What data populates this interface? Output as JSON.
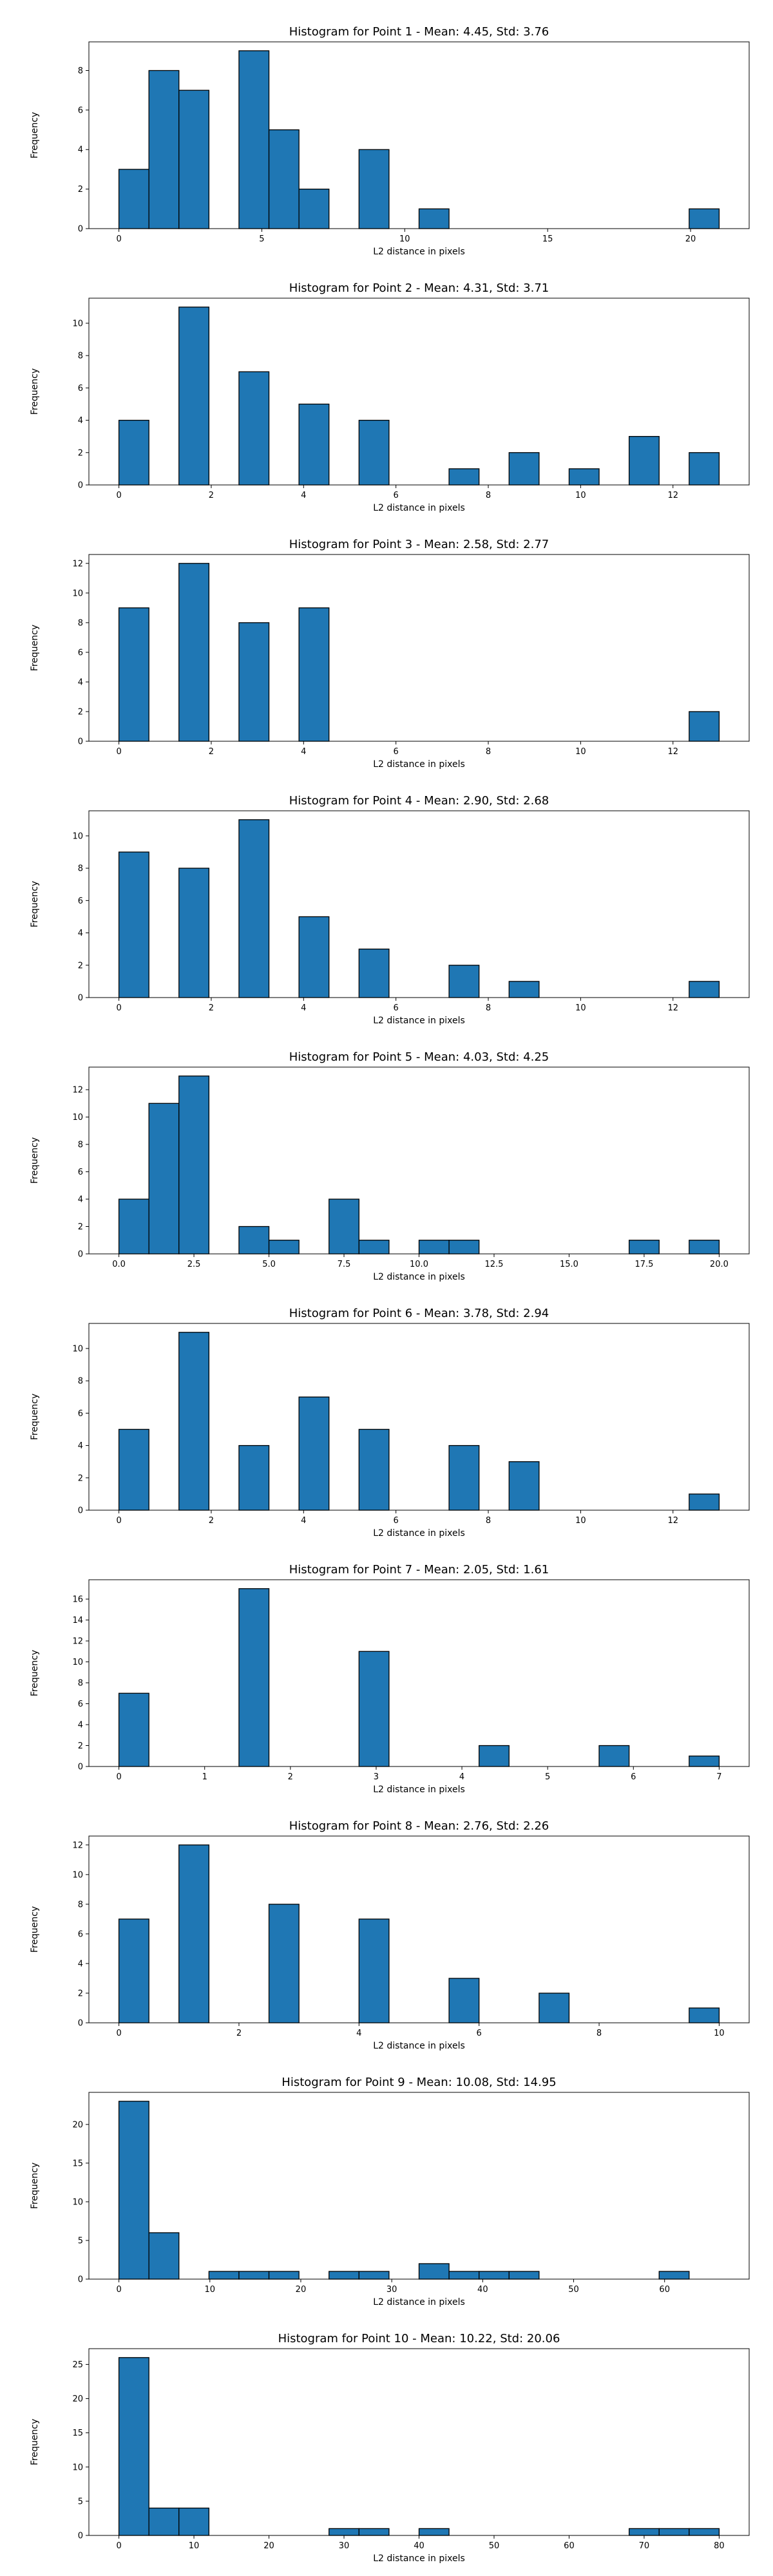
{
  "chart_data": [
    {
      "type": "bar",
      "title": "Histogram for Point 1 - Mean: 4.45, Std: 3.76",
      "xlabel": "L2 distance in pixels",
      "ylabel": "Frequency",
      "xlim": [
        -1.05,
        22.05
      ],
      "ylim": [
        0,
        9.45
      ],
      "xticks": [
        0,
        5,
        10,
        15,
        20
      ],
      "xtick_labels": [
        "0",
        "5",
        "10",
        "15",
        "20"
      ],
      "yticks": [
        0,
        2,
        4,
        6,
        8
      ],
      "bin_width": 1.05,
      "bars": [
        {
          "x": 0.0,
          "value": 3
        },
        {
          "x": 1.05,
          "value": 8
        },
        {
          "x": 2.1,
          "value": 7
        },
        {
          "x": 4.2,
          "value": 9
        },
        {
          "x": 5.25,
          "value": 5
        },
        {
          "x": 6.3,
          "value": 2
        },
        {
          "x": 8.4,
          "value": 4
        },
        {
          "x": 10.5,
          "value": 1
        },
        {
          "x": 19.95,
          "value": 1
        }
      ]
    },
    {
      "type": "bar",
      "title": "Histogram for Point 2 - Mean: 4.31, Std: 3.71",
      "xlabel": "L2 distance in pixels",
      "ylabel": "Frequency",
      "xlim": [
        -0.65,
        13.65
      ],
      "ylim": [
        0,
        11.55
      ],
      "xticks": [
        0,
        2,
        4,
        6,
        8,
        10,
        12
      ],
      "xtick_labels": [
        "0",
        "2",
        "4",
        "6",
        "8",
        "10",
        "12"
      ],
      "yticks": [
        0,
        2,
        4,
        6,
        8,
        10
      ],
      "bin_width": 0.65,
      "bars": [
        {
          "x": 0.0,
          "value": 4
        },
        {
          "x": 1.3,
          "value": 11
        },
        {
          "x": 2.6,
          "value": 7
        },
        {
          "x": 3.9,
          "value": 5
        },
        {
          "x": 5.2,
          "value": 4
        },
        {
          "x": 7.15,
          "value": 1
        },
        {
          "x": 8.45,
          "value": 2
        },
        {
          "x": 9.75,
          "value": 1
        },
        {
          "x": 11.05,
          "value": 3
        },
        {
          "x": 12.35,
          "value": 2
        }
      ]
    },
    {
      "type": "bar",
      "title": "Histogram for Point 3 - Mean: 2.58, Std: 2.77",
      "xlabel": "L2 distance in pixels",
      "ylabel": "Frequency",
      "xlim": [
        -0.65,
        13.65
      ],
      "ylim": [
        0,
        12.6
      ],
      "xticks": [
        0,
        2,
        4,
        6,
        8,
        10,
        12
      ],
      "xtick_labels": [
        "0",
        "2",
        "4",
        "6",
        "8",
        "10",
        "12"
      ],
      "yticks": [
        0,
        2,
        4,
        6,
        8,
        10,
        12
      ],
      "bin_width": 0.65,
      "bars": [
        {
          "x": 0.0,
          "value": 9
        },
        {
          "x": 1.3,
          "value": 12
        },
        {
          "x": 2.6,
          "value": 8
        },
        {
          "x": 3.9,
          "value": 9
        },
        {
          "x": 12.35,
          "value": 2
        }
      ]
    },
    {
      "type": "bar",
      "title": "Histogram for Point 4 - Mean: 2.90, Std: 2.68",
      "xlabel": "L2 distance in pixels",
      "ylabel": "Frequency",
      "xlim": [
        -0.65,
        13.65
      ],
      "ylim": [
        0,
        11.55
      ],
      "xticks": [
        0,
        2,
        4,
        6,
        8,
        10,
        12
      ],
      "xtick_labels": [
        "0",
        "2",
        "4",
        "6",
        "8",
        "10",
        "12"
      ],
      "yticks": [
        0,
        2,
        4,
        6,
        8,
        10
      ],
      "bin_width": 0.65,
      "bars": [
        {
          "x": 0.0,
          "value": 9
        },
        {
          "x": 1.3,
          "value": 8
        },
        {
          "x": 2.6,
          "value": 11
        },
        {
          "x": 3.9,
          "value": 5
        },
        {
          "x": 5.2,
          "value": 3
        },
        {
          "x": 7.15,
          "value": 2
        },
        {
          "x": 8.45,
          "value": 1
        },
        {
          "x": 12.35,
          "value": 1
        }
      ]
    },
    {
      "type": "bar",
      "title": "Histogram for Point 5 - Mean: 4.03, Std: 4.25",
      "xlabel": "L2 distance in pixels",
      "ylabel": "Frequency",
      "xlim": [
        -1.0,
        21.0
      ],
      "ylim": [
        0,
        13.65
      ],
      "xticks": [
        0,
        2.5,
        5,
        7.5,
        10,
        12.5,
        15,
        17.5,
        20
      ],
      "xtick_labels": [
        "0.0",
        "2.5",
        "5.0",
        "7.5",
        "10.0",
        "12.5",
        "15.0",
        "17.5",
        "20.0"
      ],
      "yticks": [
        0,
        2,
        4,
        6,
        8,
        10,
        12
      ],
      "bin_width": 1.0,
      "bars": [
        {
          "x": 0.0,
          "value": 4
        },
        {
          "x": 1.0,
          "value": 11
        },
        {
          "x": 2.0,
          "value": 13
        },
        {
          "x": 4.0,
          "value": 2
        },
        {
          "x": 5.0,
          "value": 1
        },
        {
          "x": 7.0,
          "value": 4
        },
        {
          "x": 8.0,
          "value": 1
        },
        {
          "x": 10.0,
          "value": 1
        },
        {
          "x": 11.0,
          "value": 1
        },
        {
          "x": 17.0,
          "value": 1
        },
        {
          "x": 19.0,
          "value": 1
        }
      ]
    },
    {
      "type": "bar",
      "title": "Histogram for Point 6 - Mean: 3.78, Std: 2.94",
      "xlabel": "L2 distance in pixels",
      "ylabel": "Frequency",
      "xlim": [
        -0.65,
        13.65
      ],
      "ylim": [
        0,
        11.55
      ],
      "xticks": [
        0,
        2,
        4,
        6,
        8,
        10,
        12
      ],
      "xtick_labels": [
        "0",
        "2",
        "4",
        "6",
        "8",
        "10",
        "12"
      ],
      "yticks": [
        0,
        2,
        4,
        6,
        8,
        10
      ],
      "bin_width": 0.65,
      "bars": [
        {
          "x": 0.0,
          "value": 5
        },
        {
          "x": 1.3,
          "value": 11
        },
        {
          "x": 2.6,
          "value": 4
        },
        {
          "x": 3.9,
          "value": 7
        },
        {
          "x": 5.2,
          "value": 5
        },
        {
          "x": 7.15,
          "value": 4
        },
        {
          "x": 8.45,
          "value": 3
        },
        {
          "x": 12.35,
          "value": 1
        }
      ]
    },
    {
      "type": "bar",
      "title": "Histogram for Point 7 - Mean: 2.05, Std: 1.61",
      "xlabel": "L2 distance in pixels",
      "ylabel": "Frequency",
      "xlim": [
        -0.35,
        7.35
      ],
      "ylim": [
        0,
        17.85
      ],
      "xticks": [
        0,
        1,
        2,
        3,
        4,
        5,
        6,
        7
      ],
      "xtick_labels": [
        "0",
        "1",
        "2",
        "3",
        "4",
        "5",
        "6",
        "7"
      ],
      "yticks": [
        0,
        2,
        4,
        6,
        8,
        10,
        12,
        14,
        16
      ],
      "bin_width": 0.35,
      "bars": [
        {
          "x": 0.0,
          "value": 7
        },
        {
          "x": 1.4,
          "value": 17
        },
        {
          "x": 2.8,
          "value": 11
        },
        {
          "x": 4.2,
          "value": 2
        },
        {
          "x": 5.6,
          "value": 2
        },
        {
          "x": 6.65,
          "value": 1
        }
      ]
    },
    {
      "type": "bar",
      "title": "Histogram for Point 8 - Mean: 2.76, Std: 2.26",
      "xlabel": "L2 distance in pixels",
      "ylabel": "Frequency",
      "xlim": [
        -0.5,
        10.5
      ],
      "ylim": [
        0,
        12.6
      ],
      "xticks": [
        0,
        2,
        4,
        6,
        8,
        10
      ],
      "xtick_labels": [
        "0",
        "2",
        "4",
        "6",
        "8",
        "10"
      ],
      "yticks": [
        0,
        2,
        4,
        6,
        8,
        10,
        12
      ],
      "bin_width": 0.5,
      "bars": [
        {
          "x": 0.0,
          "value": 7
        },
        {
          "x": 1.0,
          "value": 12
        },
        {
          "x": 2.5,
          "value": 8
        },
        {
          "x": 4.0,
          "value": 7
        },
        {
          "x": 5.5,
          "value": 3
        },
        {
          "x": 7.0,
          "value": 2
        },
        {
          "x": 9.5,
          "value": 1
        }
      ]
    },
    {
      "type": "bar",
      "title": "Histogram for Point 9 - Mean: 10.08, Std: 14.95",
      "xlabel": "L2 distance in pixels",
      "ylabel": "Frequency",
      "xlim": [
        -3.3,
        69.3
      ],
      "ylim": [
        0,
        24.15
      ],
      "xticks": [
        0,
        10,
        20,
        30,
        40,
        50,
        60
      ],
      "xtick_labels": [
        "0",
        "10",
        "20",
        "30",
        "40",
        "50",
        "60"
      ],
      "yticks": [
        0,
        5,
        10,
        15,
        20
      ],
      "bin_width": 3.3,
      "bars": [
        {
          "x": 0.0,
          "value": 23
        },
        {
          "x": 3.3,
          "value": 6
        },
        {
          "x": 9.9,
          "value": 1
        },
        {
          "x": 13.2,
          "value": 1
        },
        {
          "x": 16.5,
          "value": 1
        },
        {
          "x": 23.1,
          "value": 1
        },
        {
          "x": 26.4,
          "value": 1
        },
        {
          "x": 33.0,
          "value": 2
        },
        {
          "x": 36.3,
          "value": 1
        },
        {
          "x": 39.6,
          "value": 1
        },
        {
          "x": 42.9,
          "value": 1
        },
        {
          "x": 59.4,
          "value": 1
        }
      ]
    },
    {
      "type": "bar",
      "title": "Histogram for Point 10 - Mean: 10.22, Std: 20.06",
      "xlabel": "L2 distance in pixels",
      "ylabel": "Frequency",
      "xlim": [
        -4.0,
        84.0
      ],
      "ylim": [
        0,
        27.3
      ],
      "xticks": [
        0,
        10,
        20,
        30,
        40,
        50,
        60,
        70,
        80
      ],
      "xtick_labels": [
        "0",
        "10",
        "20",
        "30",
        "40",
        "50",
        "60",
        "70",
        "80"
      ],
      "yticks": [
        0,
        5,
        10,
        15,
        20,
        25
      ],
      "bin_width": 4.0,
      "bars": [
        {
          "x": 0.0,
          "value": 26
        },
        {
          "x": 4.0,
          "value": 4
        },
        {
          "x": 8.0,
          "value": 4
        },
        {
          "x": 28.0,
          "value": 1
        },
        {
          "x": 32.0,
          "value": 1
        },
        {
          "x": 40.0,
          "value": 1
        },
        {
          "x": 68.0,
          "value": 1
        },
        {
          "x": 72.0,
          "value": 1
        },
        {
          "x": 76.0,
          "value": 1
        }
      ]
    }
  ]
}
